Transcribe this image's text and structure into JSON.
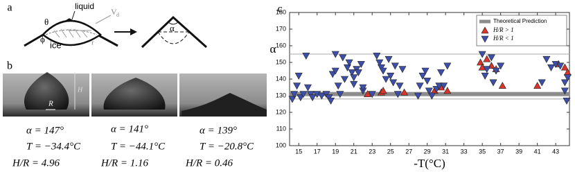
{
  "panel_a": {
    "label": "a",
    "theta": "θ",
    "liquid": "liquid",
    "vd": "V",
    "vd_sub": "d",
    "phi": "ϕ",
    "ice": "ice",
    "r": "r",
    "alpha": "α"
  },
  "panel_b": {
    "label": "b",
    "height_label": "H",
    "radius_label": "R",
    "droplets": [
      {
        "alpha": "α = 147°",
        "T": "T = −34.4°C",
        "HR": "H/R = 4.96"
      },
      {
        "alpha": "α = 141°",
        "T": "T = −44.1°C",
        "HR": "H/R = 1.16"
      },
      {
        "alpha": "α = 139°",
        "T": "T = −20.8°C",
        "HR": "H/R = 0.46"
      }
    ]
  },
  "chart_data": {
    "type": "scatter",
    "label": "c",
    "ylabel": "α",
    "xlabel": "-T(°C)",
    "xlim": [
      14,
      44.5
    ],
    "ylim": [
      100,
      180
    ],
    "xticks": [
      15,
      17,
      19,
      21,
      23,
      25,
      27,
      29,
      31,
      33,
      35,
      37,
      39,
      41,
      43
    ],
    "yticks": [
      100,
      110,
      120,
      130,
      140,
      150,
      160,
      170,
      180
    ],
    "legend": "top-right",
    "theoretical": {
      "name": "Theoretical Prediction",
      "value": 131,
      "color": "#8c8c8c"
    },
    "bounds": [
      128,
      155
    ],
    "series": [
      {
        "name": "H/R > 1",
        "color": "#d9352b",
        "marker": "triangle-up",
        "x": [
          22.5,
          24,
          24.2,
          26.5,
          29.8,
          30.5,
          31.2,
          34.8,
          35,
          35.5,
          36,
          36.5,
          37.2,
          41,
          43.3,
          44,
          44.3
        ],
        "values": [
          131,
          132,
          133,
          132,
          133,
          135,
          133,
          150,
          147,
          152,
          148,
          146,
          136,
          136,
          149,
          147,
          144
        ]
      },
      {
        "name": "H/R < 1",
        "color": "#3d4fa8",
        "marker": "triangle-down",
        "x": [
          14.3,
          14.5,
          14.8,
          15,
          15.2,
          15.5,
          15.8,
          16,
          16.3,
          16.5,
          17,
          17.5,
          18,
          18.3,
          18.5,
          18.7,
          19,
          19,
          19.3,
          19.5,
          19.8,
          20,
          20.3,
          20.5,
          20.8,
          21,
          21,
          21.3,
          21.5,
          21.8,
          22,
          22,
          23,
          23.5,
          23.8,
          24,
          24.2,
          24.5,
          24.8,
          25,
          25.3,
          25.5,
          25.8,
          26,
          26.3,
          28,
          28.2,
          28.5,
          28.8,
          29,
          29.2,
          29.5,
          30,
          30.3,
          30.5,
          30.8,
          31.2,
          35,
          35.3,
          35.5,
          36,
          36.2,
          36.5,
          37,
          41.5,
          42,
          42.5,
          43,
          43.5,
          44,
          44,
          44.2,
          44.3
        ],
        "values": [
          128,
          131,
          136,
          142,
          129,
          131,
          154,
          135,
          131,
          129,
          131,
          130,
          131,
          129,
          127,
          143,
          145,
          155,
          136,
          131,
          153,
          140,
          147,
          150,
          144,
          137,
          141,
          146,
          144,
          149,
          133,
          135,
          131,
          154,
          150,
          147,
          145,
          140,
          152,
          142,
          138,
          148,
          131,
          136,
          146,
          130,
          136,
          142,
          145,
          139,
          133,
          130,
          134,
          136,
          144,
          136,
          148,
          155,
          142,
          146,
          153,
          138,
          145,
          148,
          138,
          152,
          147,
          149,
          148,
          138,
          133,
          127,
          141
        ]
      }
    ]
  }
}
